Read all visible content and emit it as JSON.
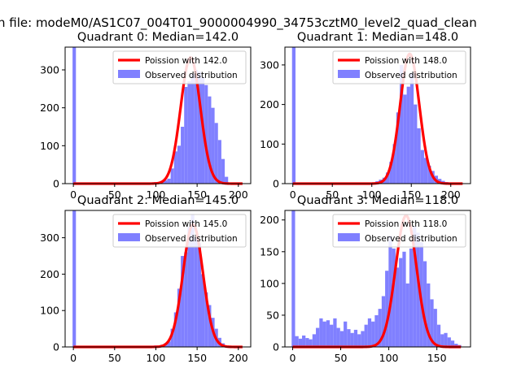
{
  "figure": {
    "suptitle": "n file: modeM0/AS1C07_004T01_9000004990_34753cztM0_level2_quad_clean"
  },
  "colors": {
    "hist_fill": "#8080ff",
    "curve": "#ff0000",
    "axes": "#000000",
    "background": "#ffffff"
  },
  "chart_data": [
    {
      "type": "bar",
      "title": "Quadrant 0: Median=142.0",
      "median": 142.0,
      "xlim": [
        -10,
        215
      ],
      "ylim": [
        0,
        360
      ],
      "xticks": [
        0,
        50,
        100,
        150,
        200
      ],
      "yticks": [
        0,
        100,
        200,
        300
      ],
      "legend_location": "top-right",
      "legend": [
        "Poission with 142.0",
        "Observed distribution"
      ],
      "bins_start": -1,
      "bin_width": 4.1,
      "values": [
        360,
        0,
        0,
        0,
        0,
        0,
        0,
        0,
        0,
        0,
        0,
        0,
        0,
        0,
        0,
        0,
        0,
        0,
        0,
        0,
        0,
        0,
        1,
        2,
        4,
        3,
        6,
        9,
        13,
        40,
        85,
        100,
        150,
        255,
        270,
        290,
        300,
        295,
        280,
        260,
        230,
        200,
        160,
        115,
        65,
        18,
        3
      ],
      "curve": {
        "label": "Poission with 142.0",
        "mu": 142.0,
        "peak": 333,
        "x_start": 0,
        "x_end": 205
      }
    },
    {
      "type": "bar",
      "title": "Quadrant 1: Median=148.0",
      "median": 148.0,
      "xlim": [
        -10,
        225
      ],
      "ylim": [
        0,
        345
      ],
      "xticks": [
        0,
        50,
        100,
        150,
        200
      ],
      "yticks": [
        0,
        100,
        200,
        300
      ],
      "legend_location": "top-right",
      "legend": [
        "Poission with 148.0",
        "Observed distribution"
      ],
      "bins_start": -1,
      "bin_width": 4.4,
      "values": [
        345,
        0,
        0,
        0,
        0,
        0,
        0,
        0,
        0,
        0,
        0,
        0,
        0,
        0,
        0,
        0,
        0,
        0,
        0,
        0,
        0,
        0,
        2,
        3,
        6,
        10,
        15,
        28,
        55,
        100,
        180,
        300,
        225,
        245,
        280,
        200,
        140,
        85,
        65,
        45,
        32,
        20,
        12,
        7,
        4,
        1,
        0,
        0,
        0
      ],
      "curve": {
        "label": "Poission with 148.0",
        "mu": 148.0,
        "peak": 328,
        "x_start": 0,
        "x_end": 215
      }
    },
    {
      "type": "bar",
      "title": "Quadrant 2: Median=145.0",
      "median": 145.0,
      "xlim": [
        -10,
        215
      ],
      "ylim": [
        0,
        375
      ],
      "xticks": [
        0,
        50,
        100,
        150,
        200
      ],
      "yticks": [
        0,
        100,
        200,
        300
      ],
      "legend_location": "top-right",
      "legend": [
        "Poission with 145.0",
        "Observed distribution"
      ],
      "bins_start": -1,
      "bin_width": 4.1,
      "values": [
        375,
        0,
        0,
        0,
        0,
        0,
        0,
        0,
        0,
        0,
        0,
        0,
        0,
        0,
        0,
        0,
        0,
        0,
        0,
        0,
        0,
        0,
        1,
        2,
        4,
        3,
        6,
        10,
        15,
        50,
        95,
        160,
        250,
        260,
        330,
        365,
        300,
        285,
        200,
        150,
        115,
        80,
        50,
        25,
        10,
        2,
        0
      ],
      "curve": {
        "label": "Poission with 145.0",
        "mu": 145.0,
        "peak": 337,
        "x_start": 0,
        "x_end": 205
      }
    },
    {
      "type": "bar",
      "title": "Quadrant 3: Median=118.0",
      "median": 118.0,
      "xlim": [
        -8,
        185
      ],
      "ylim": [
        0,
        215
      ],
      "xticks": [
        0,
        50,
        100,
        150
      ],
      "yticks": [
        0,
        50,
        100,
        150,
        200
      ],
      "legend_location": "top-right",
      "legend": [
        "Poission with 118.0",
        "Observed distribution"
      ],
      "bins_start": -1,
      "bin_width": 3.6,
      "values": [
        215,
        17,
        13,
        18,
        14,
        12,
        20,
        30,
        45,
        40,
        42,
        35,
        45,
        30,
        25,
        40,
        28,
        22,
        27,
        20,
        25,
        35,
        45,
        40,
        50,
        60,
        80,
        120,
        175,
        155,
        125,
        140,
        150,
        100,
        155,
        190,
        180,
        165,
        135,
        100,
        75,
        60,
        35,
        20,
        22,
        15,
        10,
        5,
        3
      ],
      "curve": {
        "label": "Poission with 118.0",
        "mu": 118.0,
        "peak": 207,
        "x_start": 0,
        "x_end": 175
      }
    }
  ]
}
